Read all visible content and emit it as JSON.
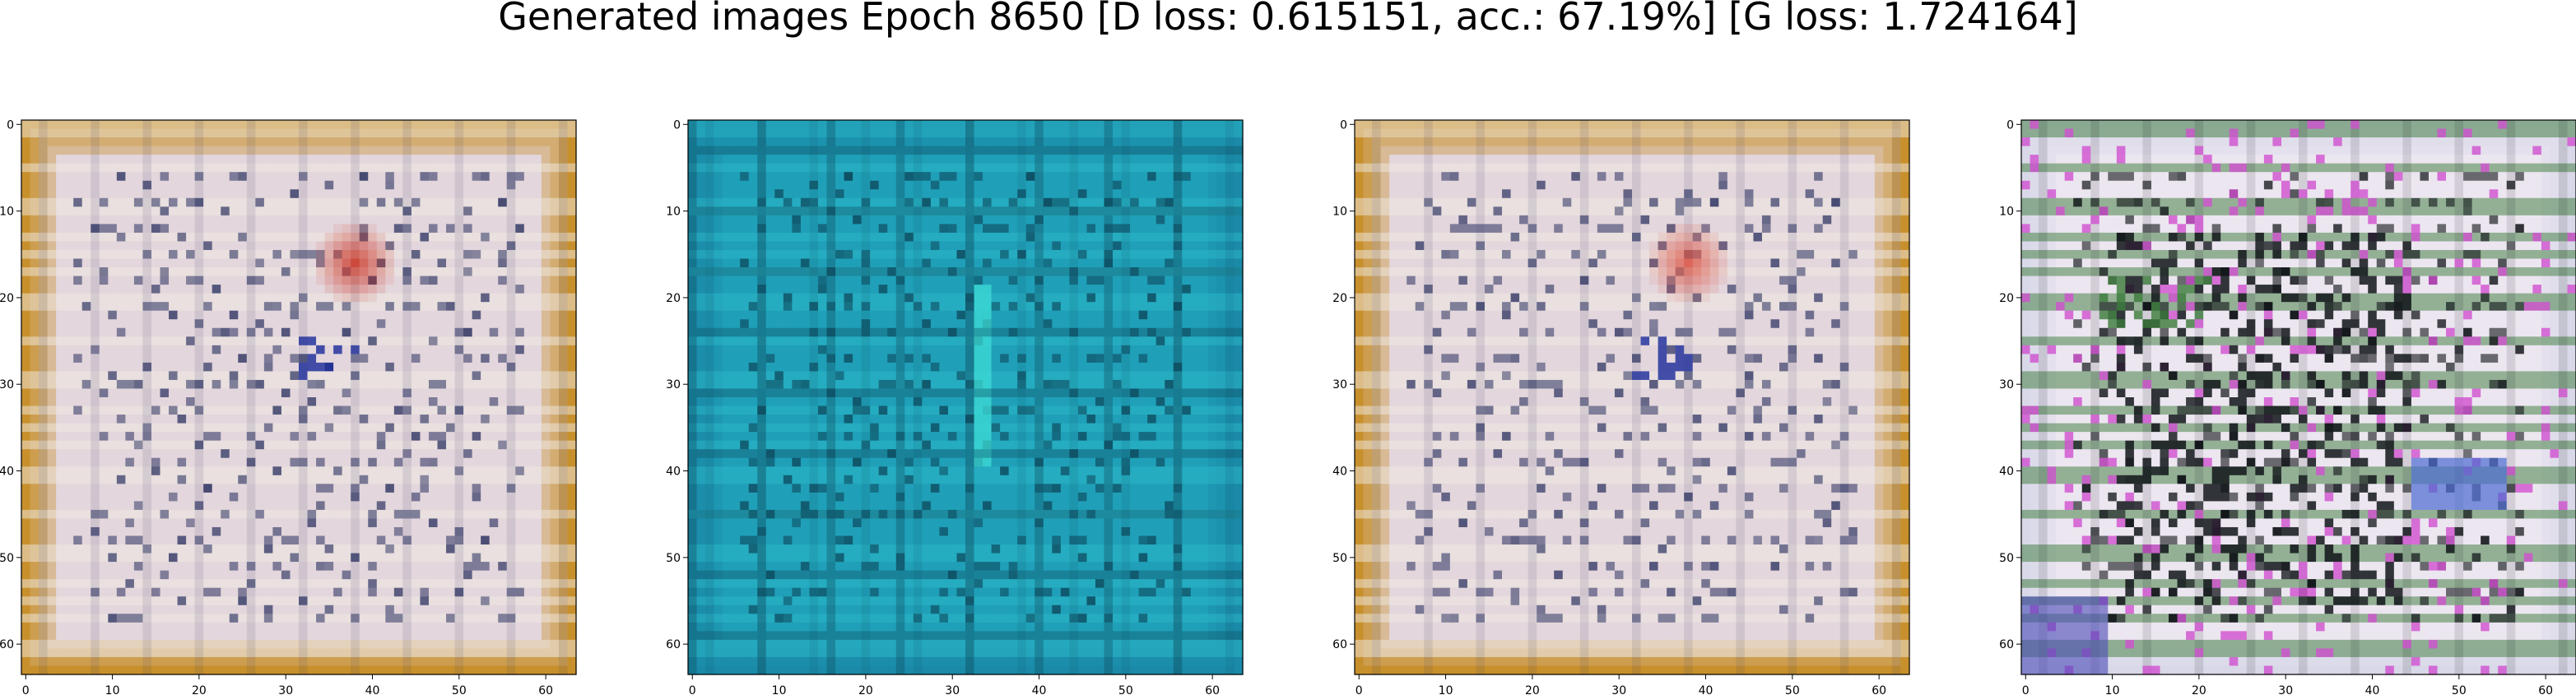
{
  "figure": {
    "title": "Generated images Epoch 8650 [D loss: 0.615151, acc.: 67.19%] [G loss: 1.724164]"
  },
  "chart_data": [
    {
      "type": "heatmap",
      "image_kind": "rgb-image",
      "title": "",
      "xlabel": "",
      "ylabel": "",
      "xlim": [
        -0.5,
        63.5
      ],
      "ylim": [
        63.5,
        -0.5
      ],
      "x_ticks": [
        0,
        10,
        20,
        30,
        40,
        50,
        60
      ],
      "y_ticks": [
        0,
        10,
        20,
        30,
        40,
        50,
        60
      ],
      "grid": false,
      "palette": {
        "border": "#c8902c",
        "field": "#e3d6dc",
        "stroke_dark": "#3a3f6a",
        "accent": "#cc3322",
        "band": "#efe9e2"
      }
    },
    {
      "type": "heatmap",
      "image_kind": "rgb-image",
      "title": "",
      "xlabel": "",
      "ylabel": "",
      "xlim": [
        -0.5,
        63.5
      ],
      "ylim": [
        63.5,
        -0.5
      ],
      "x_ticks": [
        0,
        10,
        20,
        30,
        40,
        50,
        60
      ],
      "y_ticks": [
        0,
        10,
        20,
        30,
        40,
        50,
        60
      ],
      "grid": false,
      "palette": {
        "border": "#1a8aa8",
        "field": "#1fa0b8",
        "stroke_dark": "#0d4a5e",
        "accent": "#3fe0d8",
        "band": "#2bb8c8"
      }
    },
    {
      "type": "heatmap",
      "image_kind": "rgb-image",
      "title": "",
      "xlabel": "",
      "ylabel": "",
      "xlim": [
        -0.5,
        63.5
      ],
      "ylim": [
        63.5,
        -0.5
      ],
      "x_ticks": [
        0,
        10,
        20,
        30,
        40,
        50,
        60
      ],
      "y_ticks": [
        0,
        10,
        20,
        30,
        40,
        50,
        60
      ],
      "grid": false,
      "palette": {
        "border": "#c8902c",
        "field": "#e3d6dc",
        "stroke_dark": "#3a3f6a",
        "accent": "#dd5544",
        "band": "#efe9e2"
      }
    },
    {
      "type": "heatmap",
      "image_kind": "rgb-image",
      "title": "",
      "xlabel": "",
      "ylabel": "",
      "xlim": [
        -0.5,
        63.5
      ],
      "ylim": [
        63.5,
        -0.5
      ],
      "x_ticks": [
        0,
        10,
        20,
        30,
        40,
        50,
        60
      ],
      "y_ticks": [
        0,
        10,
        20,
        30,
        40,
        50,
        60
      ],
      "grid": false,
      "palette": {
        "border": "#d8d8e8",
        "field": "#ece6f0",
        "stroke_dark": "#101418",
        "accent": "#d050d0",
        "band": "#3a7a3a"
      }
    }
  ]
}
